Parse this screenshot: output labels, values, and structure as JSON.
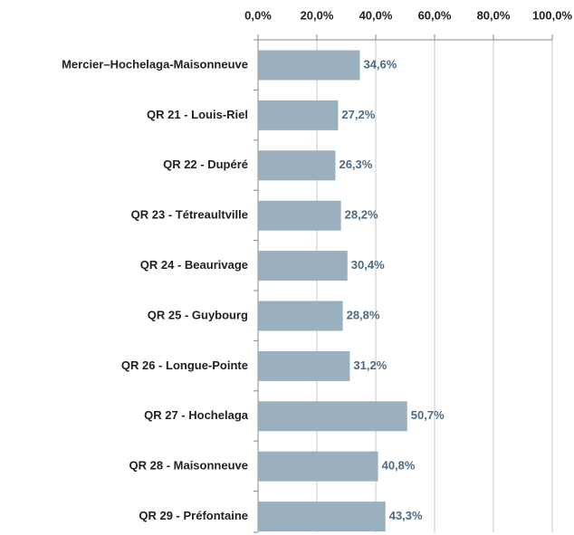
{
  "chart_data": {
    "type": "bar",
    "orientation": "horizontal",
    "categories": [
      "Mercier–Hochelaga-Maisonneuve",
      "QR 21 - Louis-Riel",
      "QR 22 - Dupéré",
      "QR 23 - Tétreaultville",
      "QR 24 - Beaurivage",
      "QR 25 - Guybourg",
      "QR 26 - Longue-Pointe",
      "QR 27 - Hochelaga",
      "QR 28 - Maisonneuve",
      "QR 29 - Préfontaine"
    ],
    "values": [
      34.6,
      27.2,
      26.3,
      28.2,
      30.4,
      28.8,
      31.2,
      50.7,
      40.8,
      43.3
    ],
    "value_labels": [
      "34,6%",
      "27,2%",
      "26,3%",
      "28,2%",
      "30,4%",
      "28,8%",
      "31,2%",
      "50,7%",
      "40,8%",
      "43,3%"
    ],
    "color": "#9bb0be",
    "xlim": [
      0,
      100
    ],
    "xticks": [
      {
        "value": 0,
        "label": "0,0%"
      },
      {
        "value": 20,
        "label": "20,0%"
      },
      {
        "value": 40,
        "label": "40,0%"
      },
      {
        "value": 60,
        "label": "60,0%"
      },
      {
        "value": 80,
        "label": "80,0%"
      },
      {
        "value": 100,
        "label": "100,0%"
      }
    ],
    "grid": true
  }
}
